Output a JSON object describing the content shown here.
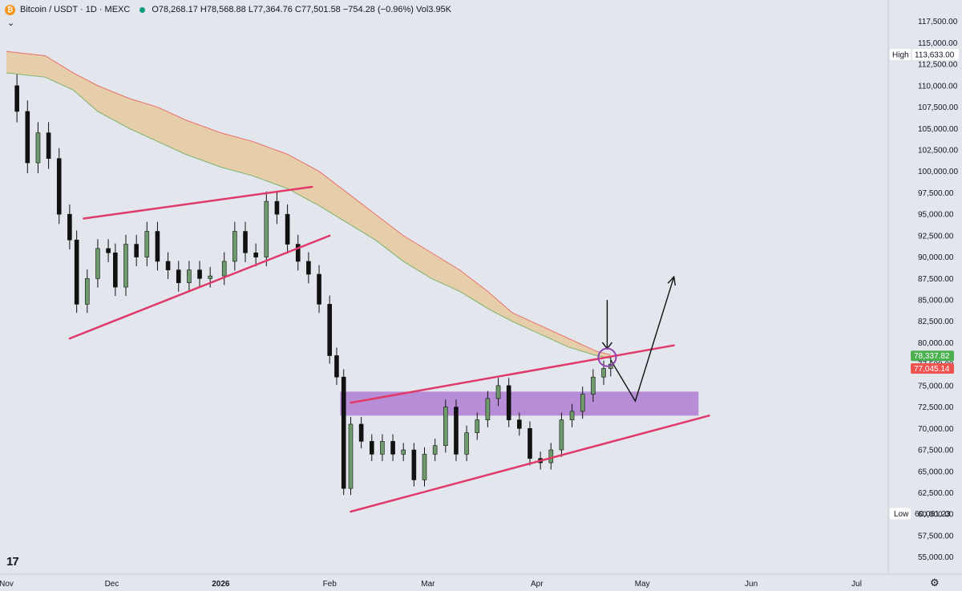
{
  "header": {
    "coin_icon": "bitcoin-icon",
    "symbol_line": "Bitcoin / USDT · 1D · MEXC",
    "ohlc": "O78,268.17 H78,568.88 L77,364.76 C77,501.58 −754.28 (−0.96%) Vol3.95K"
  },
  "colors": {
    "background": "#e3e6ec",
    "trendline": "#e03a6a",
    "zone": "#a86fd0",
    "cloud_fill": "#e8c9a0",
    "cloud_upper": "#e8706a",
    "cloud_lower": "#7bb36a",
    "candle_up": "#6e9b6b",
    "candle_down": "#111111",
    "marker_green": "#4caf50",
    "marker_red": "#ef5350"
  },
  "chart_data": {
    "type": "candlestick",
    "y_axis_ticks": [
      55000,
      57500,
      60000,
      62500,
      65000,
      67500,
      70000,
      72500,
      75000,
      77500,
      80000,
      82500,
      85000,
      87500,
      90000,
      92500,
      95000,
      97500,
      100000,
      102500,
      105000,
      107500,
      110000,
      112500,
      115000,
      117500
    ],
    "y_axis_labels": [
      "55,000.00",
      "57,500.00",
      "60,000.00",
      "62,500.00",
      "65,000.00",
      "67,500.00",
      "70,000.00",
      "72,500.00",
      "75,000.00",
      "77,500.00",
      "80,000.00",
      "82,500.00",
      "85,000.00",
      "87,500.00",
      "90,000.00",
      "92,500.00",
      "95,000.00",
      "97,500.00",
      "100,000.00",
      "102,500.00",
      "105,000.00",
      "107,500.00",
      "110,000.00",
      "112,500.00",
      "115,000.00",
      "117,500.00"
    ],
    "ylim": [
      53000,
      120000
    ],
    "x_axis_labels": [
      {
        "date": "2025-11-01",
        "label": "Nov",
        "bold": false
      },
      {
        "date": "2025-12-01",
        "label": "Dec",
        "bold": false
      },
      {
        "date": "2026-01-01",
        "label": "2026",
        "bold": true
      },
      {
        "date": "2026-02-01",
        "label": "Feb",
        "bold": false
      },
      {
        "date": "2026-03-01",
        "label": "Mar",
        "bold": false
      },
      {
        "date": "2026-04-01",
        "label": "Apr",
        "bold": false
      },
      {
        "date": "2026-05-01",
        "label": "May",
        "bold": false
      },
      {
        "date": "2026-06-01",
        "label": "Jun",
        "bold": false
      },
      {
        "date": "2026-07-01",
        "label": "Jul",
        "bold": false
      }
    ],
    "xlim": [
      "2025-11-01",
      "2026-07-10"
    ],
    "high_marker": {
      "label": "High",
      "value": 113633,
      "text": "113,633.00"
    },
    "low_marker": {
      "label": "Low",
      "value": 60061.23,
      "text": "60,061.23"
    },
    "price_badges": [
      {
        "value": 78337.82,
        "text": "78,337.82",
        "color": "#4caf50"
      },
      {
        "value": 77045.14,
        "text": "77,045.14",
        "color": "#ef5350"
      }
    ],
    "closes": [
      {
        "date": "2025-11-01",
        "value": 110000
      },
      {
        "date": "2025-11-04",
        "value": 107000
      },
      {
        "date": "2025-11-07",
        "value": 101000
      },
      {
        "date": "2025-11-10",
        "value": 104500
      },
      {
        "date": "2025-11-13",
        "value": 101500
      },
      {
        "date": "2025-11-16",
        "value": 95000
      },
      {
        "date": "2025-11-19",
        "value": 92000
      },
      {
        "date": "2025-11-21",
        "value": 84500
      },
      {
        "date": "2025-11-24",
        "value": 87500
      },
      {
        "date": "2025-11-27",
        "value": 91000
      },
      {
        "date": "2025-11-30",
        "value": 90500
      },
      {
        "date": "2025-12-02",
        "value": 86500
      },
      {
        "date": "2025-12-05",
        "value": 91500
      },
      {
        "date": "2025-12-08",
        "value": 90000
      },
      {
        "date": "2025-12-11",
        "value": 93000
      },
      {
        "date": "2025-12-14",
        "value": 89500
      },
      {
        "date": "2025-12-17",
        "value": 88500
      },
      {
        "date": "2025-12-20",
        "value": 87000
      },
      {
        "date": "2025-12-23",
        "value": 88500
      },
      {
        "date": "2025-12-26",
        "value": 87500
      },
      {
        "date": "2025-12-29",
        "value": 87800
      },
      {
        "date": "2026-01-02",
        "value": 89500
      },
      {
        "date": "2026-01-05",
        "value": 93000
      },
      {
        "date": "2026-01-08",
        "value": 90500
      },
      {
        "date": "2026-01-11",
        "value": 90000
      },
      {
        "date": "2026-01-14",
        "value": 96500
      },
      {
        "date": "2026-01-17",
        "value": 95000
      },
      {
        "date": "2026-01-20",
        "value": 91500
      },
      {
        "date": "2026-01-23",
        "value": 89500
      },
      {
        "date": "2026-01-26",
        "value": 88000
      },
      {
        "date": "2026-01-29",
        "value": 84500
      },
      {
        "date": "2026-02-01",
        "value": 78500
      },
      {
        "date": "2026-02-03",
        "value": 76000
      },
      {
        "date": "2026-02-05",
        "value": 63000
      },
      {
        "date": "2026-02-07",
        "value": 70500
      },
      {
        "date": "2026-02-10",
        "value": 68500
      },
      {
        "date": "2026-02-13",
        "value": 67000
      },
      {
        "date": "2026-02-16",
        "value": 68500
      },
      {
        "date": "2026-02-19",
        "value": 67000
      },
      {
        "date": "2026-02-22",
        "value": 67500
      },
      {
        "date": "2026-02-25",
        "value": 64000
      },
      {
        "date": "2026-02-28",
        "value": 67000
      },
      {
        "date": "2026-03-03",
        "value": 68000
      },
      {
        "date": "2026-03-06",
        "value": 72500
      },
      {
        "date": "2026-03-09",
        "value": 67000
      },
      {
        "date": "2026-03-12",
        "value": 69500
      },
      {
        "date": "2026-03-15",
        "value": 71000
      },
      {
        "date": "2026-03-18",
        "value": 73500
      },
      {
        "date": "2026-03-21",
        "value": 75000
      },
      {
        "date": "2026-03-24",
        "value": 71000
      },
      {
        "date": "2026-03-27",
        "value": 70000
      },
      {
        "date": "2026-03-30",
        "value": 66500
      },
      {
        "date": "2026-04-02",
        "value": 66000
      },
      {
        "date": "2026-04-05",
        "value": 67500
      },
      {
        "date": "2026-04-08",
        "value": 71000
      },
      {
        "date": "2026-04-11",
        "value": 72000
      },
      {
        "date": "2026-04-14",
        "value": 74000
      },
      {
        "date": "2026-04-17",
        "value": 76000
      },
      {
        "date": "2026-04-20",
        "value": 77000
      },
      {
        "date": "2026-04-22",
        "value": 77501.58
      }
    ],
    "cloud": [
      {
        "date": "2025-11-01",
        "upper": 114000,
        "lower": 111500
      },
      {
        "date": "2025-11-12",
        "upper": 113500,
        "lower": 111000
      },
      {
        "date": "2025-11-20",
        "upper": 111500,
        "lower": 109500
      },
      {
        "date": "2025-11-27",
        "upper": 110000,
        "lower": 107000
      },
      {
        "date": "2025-12-06",
        "upper": 108500,
        "lower": 105000
      },
      {
        "date": "2025-12-14",
        "upper": 107500,
        "lower": 103500
      },
      {
        "date": "2025-12-22",
        "upper": 106000,
        "lower": 102000
      },
      {
        "date": "2026-01-01",
        "upper": 104500,
        "lower": 100500
      },
      {
        "date": "2026-01-10",
        "upper": 103500,
        "lower": 99500
      },
      {
        "date": "2026-01-20",
        "upper": 102000,
        "lower": 98000
      },
      {
        "date": "2026-01-29",
        "upper": 100000,
        "lower": 96000
      },
      {
        "date": "2026-02-06",
        "upper": 97500,
        "lower": 94000
      },
      {
        "date": "2026-02-14",
        "upper": 95000,
        "lower": 92000
      },
      {
        "date": "2026-02-22",
        "upper": 92500,
        "lower": 89500
      },
      {
        "date": "2026-03-02",
        "upper": 90500,
        "lower": 87500
      },
      {
        "date": "2026-03-10",
        "upper": 88500,
        "lower": 86000
      },
      {
        "date": "2026-03-18",
        "upper": 86000,
        "lower": 84000
      },
      {
        "date": "2026-03-25",
        "upper": 83500,
        "lower": 82500
      },
      {
        "date": "2026-04-02",
        "upper": 82000,
        "lower": 81000
      },
      {
        "date": "2026-04-10",
        "upper": 80500,
        "lower": 79500
      },
      {
        "date": "2026-04-18",
        "upper": 79000,
        "lower": 78500
      },
      {
        "date": "2026-04-22",
        "upper": 78600,
        "lower": 78200
      }
    ],
    "trendlines": [
      {
        "from": {
          "date": "2025-11-23",
          "value": 94500
        },
        "to": {
          "date": "2026-01-27",
          "value": 98200
        }
      },
      {
        "from": {
          "date": "2025-11-19",
          "value": 80500
        },
        "to": {
          "date": "2026-02-01",
          "value": 92500
        }
      },
      {
        "from": {
          "date": "2026-02-07",
          "value": 73000
        },
        "to": {
          "date": "2026-05-10",
          "value": 79700
        }
      },
      {
        "from": {
          "date": "2026-02-07",
          "value": 60300
        },
        "to": {
          "date": "2026-05-20",
          "value": 71500
        }
      }
    ],
    "zone": {
      "from": "2026-02-04",
      "to": "2026-05-17",
      "top": 74300,
      "bottom": 71500
    },
    "projection": [
      {
        "date": "2026-04-22",
        "value": 78000
      },
      {
        "date": "2026-04-29",
        "value": 73200
      },
      {
        "date": "2026-05-10",
        "value": 87700
      }
    ],
    "down_arrow": {
      "date": "2026-04-21",
      "from": 85000,
      "to": 79300
    },
    "circle": {
      "date": "2026-04-21",
      "value": 78300
    }
  }
}
